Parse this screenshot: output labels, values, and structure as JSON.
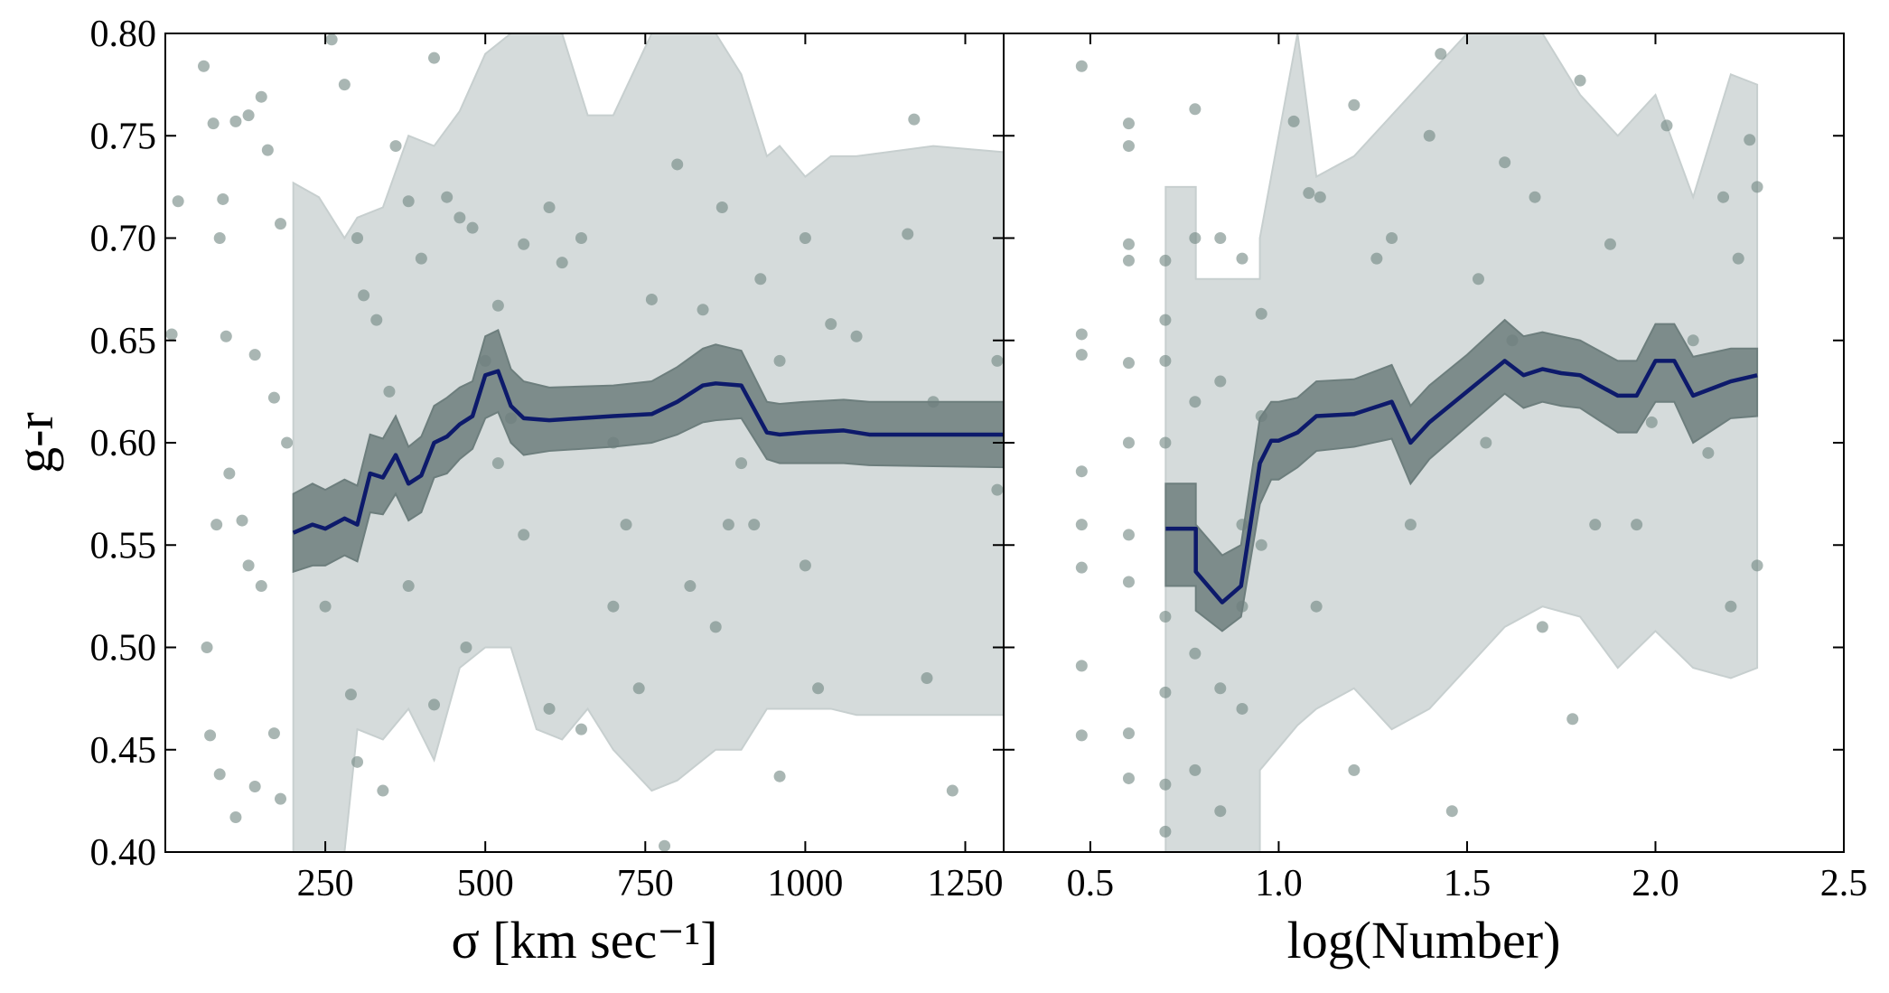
{
  "chart_data": [
    {
      "type": "scatter",
      "xlabel": "σ [km sec⁻¹]",
      "ylabel": "g-r",
      "xlim": [
        0,
        1310
      ],
      "xticks": [
        250,
        500,
        750,
        1000,
        1250
      ],
      "ylim": [
        0.4,
        0.8
      ],
      "yticks": [
        {
          "value": 0.4,
          "label": "0.40"
        },
        {
          "value": 0.45,
          "label": "0.45"
        },
        {
          "value": 0.5,
          "label": "0.50"
        },
        {
          "value": 0.55,
          "label": "0.55"
        },
        {
          "value": 0.6,
          "label": "0.60"
        },
        {
          "value": 0.65,
          "label": "0.65"
        },
        {
          "value": 0.7,
          "label": "0.70"
        },
        {
          "value": 0.75,
          "label": "0.75"
        },
        {
          "value": 0.8,
          "label": "0.80"
        }
      ],
      "point_color": "#6f8580",
      "line_color": "#0d1a6b",
      "inner_color": "#6d7e7d",
      "outer_color": "#c7cfcf",
      "points": {
        "x": [
          20,
          60,
          75,
          85,
          90,
          95,
          100,
          110,
          120,
          130,
          140,
          150,
          160,
          170,
          180,
          190,
          80,
          65,
          70,
          85,
          110,
          140,
          170,
          180,
          10,
          130,
          150,
          260,
          280,
          300,
          310,
          330,
          350,
          360,
          380,
          400,
          420,
          440,
          460,
          480,
          500,
          520,
          540,
          560,
          600,
          620,
          650,
          700,
          720,
          760,
          800,
          840,
          870,
          900,
          930,
          960,
          1000,
          1040,
          1080,
          1160,
          1170,
          1200,
          250,
          290,
          300,
          340,
          380,
          420,
          470,
          520,
          560,
          600,
          650,
          700,
          740,
          780,
          820,
          860,
          880,
          920,
          960,
          1000,
          1020,
          1190,
          1230,
          1300,
          1300
        ],
        "y": [
          0.718,
          0.784,
          0.756,
          0.7,
          0.719,
          0.652,
          0.585,
          0.757,
          0.562,
          0.76,
          0.643,
          0.769,
          0.743,
          0.622,
          0.707,
          0.6,
          0.56,
          0.5,
          0.457,
          0.438,
          0.417,
          0.432,
          0.458,
          0.426,
          0.653,
          0.54,
          0.53,
          0.797,
          0.775,
          0.7,
          0.672,
          0.66,
          0.625,
          0.745,
          0.718,
          0.69,
          0.788,
          0.72,
          0.71,
          0.705,
          0.64,
          0.667,
          0.612,
          0.697,
          0.715,
          0.688,
          0.7,
          0.6,
          0.56,
          0.67,
          0.736,
          0.665,
          0.715,
          0.59,
          0.68,
          0.64,
          0.7,
          0.658,
          0.652,
          0.702,
          0.758,
          0.62,
          0.52,
          0.477,
          0.444,
          0.43,
          0.53,
          0.472,
          0.5,
          0.59,
          0.555,
          0.47,
          0.46,
          0.52,
          0.48,
          0.403,
          0.53,
          0.51,
          0.56,
          0.56,
          0.437,
          0.54,
          0.48,
          0.485,
          0.43,
          0.577,
          0.64
        ]
      },
      "median": {
        "x": [
          200,
          230,
          250,
          280,
          300,
          320,
          340,
          360,
          380,
          400,
          420,
          440,
          460,
          480,
          500,
          520,
          540,
          560,
          600,
          700,
          760,
          800,
          840,
          860,
          900,
          940,
          960,
          1000,
          1060,
          1100,
          1310
        ],
        "y": [
          0.556,
          0.56,
          0.558,
          0.563,
          0.56,
          0.585,
          0.583,
          0.594,
          0.58,
          0.584,
          0.6,
          0.603,
          0.609,
          0.613,
          0.633,
          0.635,
          0.618,
          0.612,
          0.611,
          0.613,
          0.614,
          0.62,
          0.628,
          0.629,
          0.628,
          0.605,
          0.604,
          0.605,
          0.606,
          0.604,
          0.604
        ]
      },
      "inner_band": {
        "x": [
          200,
          230,
          250,
          280,
          300,
          320,
          340,
          360,
          380,
          400,
          420,
          440,
          460,
          480,
          500,
          520,
          540,
          560,
          600,
          700,
          760,
          800,
          840,
          860,
          900,
          940,
          960,
          1000,
          1060,
          1100,
          1310
        ],
        "lower": [
          0.537,
          0.54,
          0.54,
          0.545,
          0.542,
          0.566,
          0.565,
          0.575,
          0.562,
          0.566,
          0.583,
          0.585,
          0.592,
          0.597,
          0.612,
          0.615,
          0.6,
          0.594,
          0.596,
          0.598,
          0.6,
          0.604,
          0.61,
          0.611,
          0.612,
          0.592,
          0.59,
          0.59,
          0.59,
          0.589,
          0.588
        ],
        "upper": [
          0.575,
          0.58,
          0.577,
          0.582,
          0.579,
          0.604,
          0.602,
          0.613,
          0.598,
          0.603,
          0.618,
          0.622,
          0.627,
          0.63,
          0.652,
          0.655,
          0.636,
          0.63,
          0.627,
          0.628,
          0.63,
          0.637,
          0.646,
          0.648,
          0.645,
          0.62,
          0.619,
          0.62,
          0.621,
          0.62,
          0.62
        ]
      },
      "outer_band": {
        "x": [
          200,
          240,
          280,
          300,
          340,
          380,
          420,
          460,
          500,
          540,
          580,
          620,
          660,
          700,
          760,
          800,
          860,
          900,
          940,
          960,
          1000,
          1040,
          1080,
          1200,
          1310
        ],
        "upper": [
          0.727,
          0.72,
          0.7,
          0.71,
          0.715,
          0.75,
          0.745,
          0.762,
          0.79,
          0.8,
          0.8,
          0.8,
          0.76,
          0.76,
          0.8,
          0.8,
          0.8,
          0.78,
          0.74,
          0.745,
          0.73,
          0.74,
          0.74,
          0.745,
          0.742
        ],
        "lower": [
          0.4,
          0.4,
          0.4,
          0.46,
          0.455,
          0.47,
          0.445,
          0.49,
          0.5,
          0.5,
          0.46,
          0.455,
          0.47,
          0.45,
          0.43,
          0.435,
          0.45,
          0.45,
          0.47,
          0.47,
          0.47,
          0.47,
          0.467,
          0.467,
          0.467
        ]
      }
    },
    {
      "type": "scatter",
      "xlabel": "log(Number)",
      "xlim": [
        0.27,
        2.5
      ],
      "xticks": [
        0.5,
        {
          "value": 1,
          "label": "1.0"
        },
        1.5,
        {
          "value": 2,
          "label": "2.0"
        },
        2.5
      ],
      "ylim": [
        0.4,
        0.8
      ],
      "yticks": [
        0.4,
        0.45,
        0.5,
        0.55,
        0.6,
        0.65,
        0.7,
        0.75,
        0.8
      ],
      "point_color": "#6f8580",
      "line_color": "#0d1a6b",
      "inner_color": "#6d7e7d",
      "outer_color": "#c7cfcf",
      "points": {
        "x": [
          0.477,
          0.477,
          0.477,
          0.477,
          0.477,
          0.477,
          0.477,
          0.477,
          0.602,
          0.602,
          0.602,
          0.602,
          0.602,
          0.602,
          0.602,
          0.602,
          0.602,
          0.602,
          0.699,
          0.699,
          0.699,
          0.699,
          0.699,
          0.699,
          0.699,
          0.699,
          0.778,
          0.778,
          0.778,
          0.778,
          0.778,
          0.845,
          0.845,
          0.845,
          0.845,
          0.903,
          0.903,
          0.903,
          0.903,
          0.954,
          0.954,
          0.954,
          1.04,
          1.08,
          1.11,
          1.2,
          1.26,
          1.3,
          1.35,
          1.4,
          1.43,
          1.46,
          1.53,
          1.6,
          1.62,
          1.68,
          1.7,
          1.8,
          1.84,
          1.88,
          1.95,
          2.03,
          2.1,
          2.18,
          2.2,
          2.22,
          2.25,
          2.27,
          2.27,
          1.1,
          1.2,
          1.55,
          1.78,
          1.99,
          2.14
        ],
        "y": [
          0.784,
          0.653,
          0.643,
          0.586,
          0.56,
          0.539,
          0.491,
          0.457,
          0.756,
          0.745,
          0.697,
          0.689,
          0.639,
          0.6,
          0.555,
          0.532,
          0.458,
          0.436,
          0.689,
          0.66,
          0.64,
          0.6,
          0.515,
          0.478,
          0.433,
          0.41,
          0.763,
          0.7,
          0.62,
          0.497,
          0.44,
          0.7,
          0.63,
          0.48,
          0.42,
          0.69,
          0.56,
          0.52,
          0.47,
          0.663,
          0.613,
          0.55,
          0.757,
          0.722,
          0.72,
          0.765,
          0.69,
          0.7,
          0.56,
          0.75,
          0.79,
          0.42,
          0.68,
          0.737,
          0.65,
          0.72,
          0.51,
          0.777,
          0.56,
          0.697,
          0.56,
          0.755,
          0.65,
          0.72,
          0.52,
          0.69,
          0.748,
          0.725,
          0.54,
          0.52,
          0.44,
          0.6,
          0.465,
          0.61,
          0.595
        ]
      },
      "median": {
        "x": [
          0.7,
          0.78,
          0.78,
          0.85,
          0.9,
          0.95,
          0.98,
          1.0,
          1.05,
          1.1,
          1.2,
          1.3,
          1.35,
          1.4,
          1.5,
          1.6,
          1.65,
          1.7,
          1.75,
          1.8,
          1.9,
          1.95,
          2.0,
          2.05,
          2.1,
          2.2,
          2.27
        ],
        "y": [
          0.558,
          0.558,
          0.537,
          0.522,
          0.53,
          0.59,
          0.601,
          0.601,
          0.605,
          0.613,
          0.614,
          0.62,
          0.6,
          0.61,
          0.625,
          0.64,
          0.633,
          0.636,
          0.634,
          0.633,
          0.623,
          0.623,
          0.64,
          0.64,
          0.623,
          0.63,
          0.633
        ]
      },
      "inner_band": {
        "x": [
          0.7,
          0.78,
          0.78,
          0.85,
          0.9,
          0.95,
          0.98,
          1.0,
          1.05,
          1.1,
          1.2,
          1.3,
          1.35,
          1.4,
          1.5,
          1.6,
          1.65,
          1.7,
          1.75,
          1.8,
          1.9,
          1.95,
          2.0,
          2.05,
          2.1,
          2.2,
          2.27
        ],
        "lower": [
          0.53,
          0.53,
          0.518,
          0.508,
          0.515,
          0.57,
          0.582,
          0.582,
          0.588,
          0.596,
          0.598,
          0.602,
          0.58,
          0.592,
          0.608,
          0.624,
          0.617,
          0.62,
          0.618,
          0.617,
          0.605,
          0.605,
          0.62,
          0.62,
          0.6,
          0.612,
          0.613
        ],
        "upper": [
          0.58,
          0.58,
          0.56,
          0.545,
          0.55,
          0.612,
          0.62,
          0.62,
          0.622,
          0.63,
          0.631,
          0.638,
          0.618,
          0.628,
          0.643,
          0.66,
          0.652,
          0.654,
          0.652,
          0.65,
          0.64,
          0.64,
          0.658,
          0.658,
          0.642,
          0.646,
          0.646
        ]
      },
      "outer_band": {
        "x": [
          0.7,
          0.78,
          0.78,
          0.95,
          0.95,
          1.05,
          1.1,
          1.2,
          1.3,
          1.4,
          1.5,
          1.6,
          1.7,
          1.8,
          1.9,
          2.0,
          2.1,
          2.2,
          2.27
        ],
        "upper": [
          0.725,
          0.725,
          0.68,
          0.68,
          0.7,
          0.8,
          0.73,
          0.74,
          0.76,
          0.78,
          0.8,
          0.8,
          0.8,
          0.77,
          0.75,
          0.77,
          0.72,
          0.78,
          0.775
        ],
        "lower": [
          0.4,
          0.4,
          0.4,
          0.4,
          0.44,
          0.462,
          0.47,
          0.48,
          0.46,
          0.47,
          0.49,
          0.51,
          0.52,
          0.515,
          0.49,
          0.508,
          0.49,
          0.485,
          0.49
        ]
      }
    }
  ]
}
